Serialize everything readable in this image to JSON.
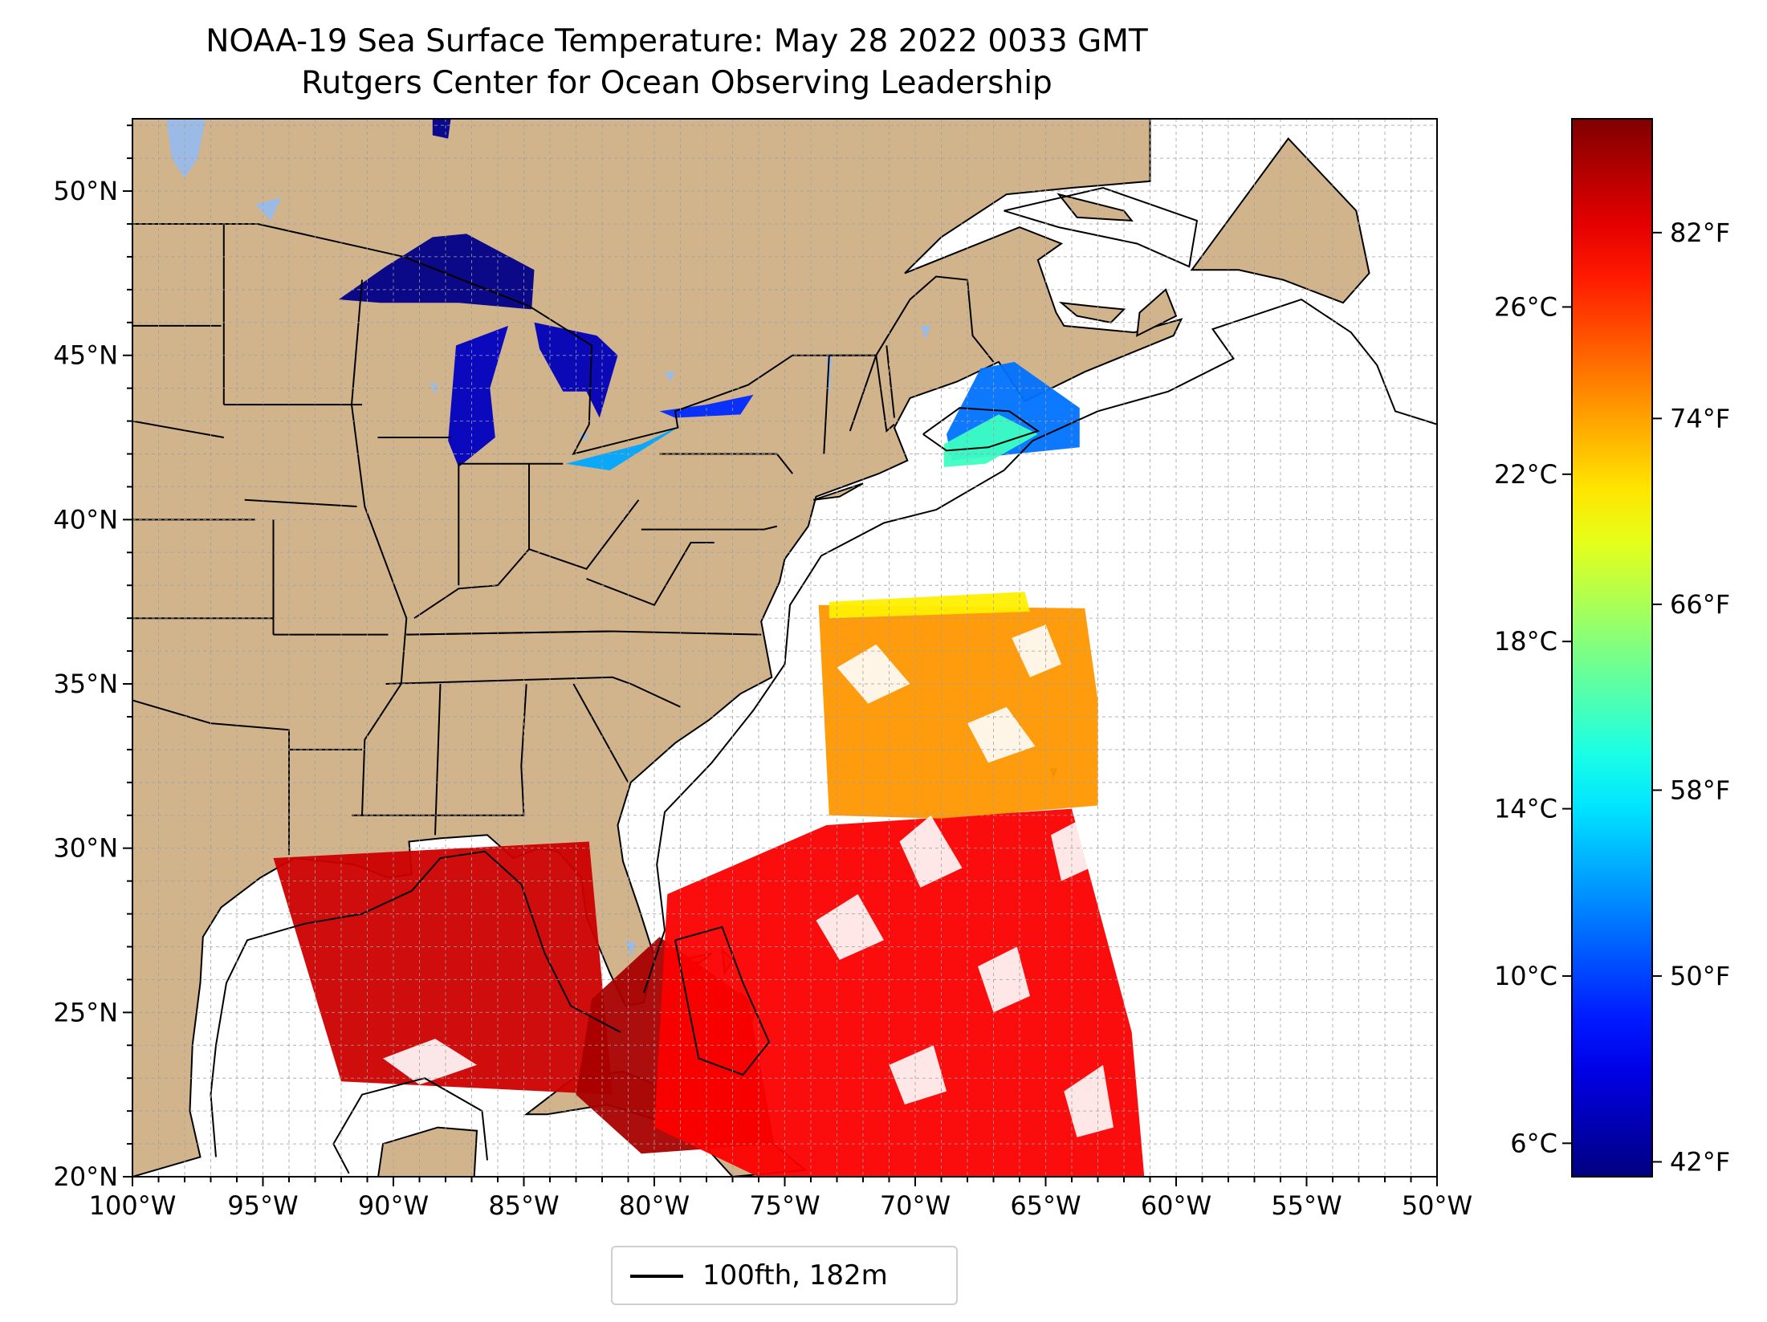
{
  "title": "NOAA-19 Sea Surface Temperature: May 28 2022 0033 GMT",
  "subtitle": "Rutgers Center for Ocean Observing Leadership",
  "map": {
    "lon_range": [
      -100,
      -50
    ],
    "lat_range": [
      20,
      52.2
    ],
    "lon_ticks": [
      {
        "value": -100,
        "label": "100°W"
      },
      {
        "value": -95,
        "label": "95°W"
      },
      {
        "value": -90,
        "label": "90°W"
      },
      {
        "value": -85,
        "label": "85°W"
      },
      {
        "value": -80,
        "label": "80°W"
      },
      {
        "value": -75,
        "label": "75°W"
      },
      {
        "value": -70,
        "label": "70°W"
      },
      {
        "value": -65,
        "label": "65°W"
      },
      {
        "value": -60,
        "label": "60°W"
      },
      {
        "value": -55,
        "label": "55°W"
      },
      {
        "value": -50,
        "label": "50°W"
      }
    ],
    "lat_ticks": [
      {
        "value": 20,
        "label": "20°N"
      },
      {
        "value": 25,
        "label": "25°N"
      },
      {
        "value": 30,
        "label": "30°N"
      },
      {
        "value": 35,
        "label": "35°N"
      },
      {
        "value": 40,
        "label": "40°N"
      },
      {
        "value": 45,
        "label": "45°N"
      },
      {
        "value": 50,
        "label": "50°N"
      }
    ],
    "gridlines": true,
    "land_color": "#d2b48c",
    "water_color": "#ffffff",
    "lake_color": "#9bbbe6",
    "coastline_color": "#000000",
    "isobath_color": "#000000"
  },
  "colorbar": {
    "colormap": "jet",
    "range_c": [
      5.2,
      30.5
    ],
    "celsius_ticks": [
      {
        "value": 6,
        "label": "6°C"
      },
      {
        "value": 10,
        "label": "10°C"
      },
      {
        "value": 14,
        "label": "14°C"
      },
      {
        "value": 18,
        "label": "18°C"
      },
      {
        "value": 22,
        "label": "22°C"
      },
      {
        "value": 26,
        "label": "26°C"
      }
    ],
    "fahrenheit_ticks": [
      {
        "value": 42,
        "label": "42°F"
      },
      {
        "value": 50,
        "label": "50°F"
      },
      {
        "value": 58,
        "label": "58°F"
      },
      {
        "value": 66,
        "label": "66°F"
      },
      {
        "value": 74,
        "label": "74°F"
      },
      {
        "value": 82,
        "label": "82°F"
      }
    ]
  },
  "legend": {
    "label": "100fth, 182m"
  },
  "sst_regions": [
    {
      "name": "gulf-of-mexico-swath",
      "temp_c": 28.6,
      "points": [
        [
          -94.6,
          29.7
        ],
        [
          -82.5,
          30.2
        ],
        [
          -81.6,
          22.5
        ],
        [
          -92,
          22.9
        ]
      ]
    },
    {
      "name": "florida-straits",
      "temp_c": 29.5,
      "points": [
        [
          -82.4,
          25.4
        ],
        [
          -79.8,
          27.3
        ],
        [
          -76.4,
          25.4
        ],
        [
          -75.4,
          21
        ],
        [
          -80.5,
          20.7
        ],
        [
          -83,
          22.5
        ]
      ]
    },
    {
      "name": "atlantic-subtropical-swath",
      "temp_c": 27.4,
      "points": [
        [
          -79.5,
          28.6
        ],
        [
          -73.4,
          30.7
        ],
        [
          -64,
          31.2
        ],
        [
          -61.7,
          24.4
        ],
        [
          -61.2,
          19.8
        ],
        [
          -75.5,
          19.8
        ],
        [
          -80,
          21.5
        ]
      ]
    },
    {
      "name": "atlantic-midlatitude-swath",
      "temp_c": 23.6,
      "points": [
        [
          -73.7,
          37.4
        ],
        [
          -63.5,
          37.3
        ],
        [
          -63,
          34.5
        ],
        [
          -63,
          31.3
        ],
        [
          -69,
          30.9
        ],
        [
          -73.3,
          31
        ]
      ]
    },
    {
      "name": "atlantic-northern-edge",
      "temp_c": 21.4,
      "points": [
        [
          -73.3,
          37.5
        ],
        [
          -65.8,
          37.8
        ],
        [
          -65.6,
          37.2
        ],
        [
          -73.3,
          37
        ]
      ]
    },
    {
      "name": "gulf-of-maine",
      "temp_c": 11.2,
      "points": [
        [
          -67.5,
          44.6
        ],
        [
          -66.2,
          44.8
        ],
        [
          -63.7,
          43.4
        ],
        [
          -63.7,
          42.2
        ],
        [
          -68.6,
          41.8
        ],
        [
          -68.8,
          42.6
        ]
      ]
    },
    {
      "name": "gulf-of-maine-warm-patch",
      "temp_c": 16.2,
      "points": [
        [
          -68.9,
          42.3
        ],
        [
          -66.8,
          43.2
        ],
        [
          -65.3,
          42.6
        ],
        [
          -67.3,
          41.7
        ],
        [
          -68.9,
          41.6
        ]
      ]
    },
    {
      "name": "lake-superior",
      "temp_c": 5.4,
      "points": [
        [
          -92.1,
          46.7
        ],
        [
          -90.3,
          47.7
        ],
        [
          -88.5,
          48.6
        ],
        [
          -87.2,
          48.7
        ],
        [
          -84.6,
          47.6
        ],
        [
          -84.7,
          46.4
        ],
        [
          -87.5,
          46.6
        ],
        [
          -90.5,
          46.6
        ]
      ]
    },
    {
      "name": "lake-michigan",
      "temp_c": 6.8,
      "points": [
        [
          -87.6,
          45.3
        ],
        [
          -85.6,
          45.9
        ],
        [
          -86.3,
          44
        ],
        [
          -86.1,
          42.5
        ],
        [
          -87.5,
          41.6
        ],
        [
          -87.9,
          42.4
        ]
      ]
    },
    {
      "name": "lake-huron",
      "temp_c": 6.6,
      "points": [
        [
          -84.6,
          46
        ],
        [
          -82.2,
          45.6
        ],
        [
          -81.4,
          45
        ],
        [
          -82.1,
          43.1
        ],
        [
          -82.6,
          43.9
        ],
        [
          -83.5,
          43.9
        ],
        [
          -84.4,
          45.2
        ]
      ]
    },
    {
      "name": "lake-erie",
      "temp_c": 12.5,
      "points": [
        [
          -83.4,
          41.7
        ],
        [
          -80.5,
          42.3
        ],
        [
          -78.9,
          42.9
        ],
        [
          -79.5,
          42.6
        ],
        [
          -81.7,
          41.5
        ]
      ]
    },
    {
      "name": "lake-ontario",
      "temp_c": 9.4,
      "points": [
        [
          -79.8,
          43.3
        ],
        [
          -78,
          43.5
        ],
        [
          -76.2,
          43.8
        ],
        [
          -76.7,
          43.2
        ],
        [
          -79.2,
          43.1
        ]
      ]
    },
    {
      "name": "lake-nipigon",
      "temp_c": 5.6,
      "points": [
        [
          -88.5,
          52.2
        ],
        [
          -87.8,
          52.2
        ],
        [
          -87.9,
          51.6
        ],
        [
          -88.5,
          51.7
        ]
      ]
    }
  ]
}
